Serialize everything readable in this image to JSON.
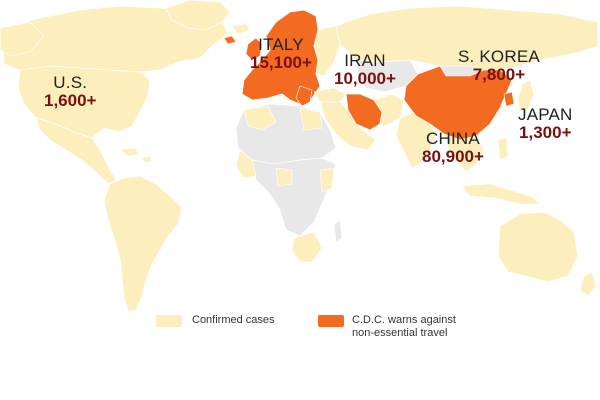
{
  "colors": {
    "confirmed": "#fcefbd",
    "travel_warning": "#f26b21",
    "no_cases": "#e8e8e8",
    "border": "#ffffff",
    "label_value": "#7a1010"
  },
  "labels": [
    {
      "name": "U.S.",
      "value": "1,600+"
    },
    {
      "name": "ITALY",
      "value": "15,100+"
    },
    {
      "name": "IRAN",
      "value": "10,000+"
    },
    {
      "name": "S. KOREA",
      "value": "7,800+"
    },
    {
      "name": "JAPAN",
      "value": "1,300+"
    },
    {
      "name": "CHINA",
      "value": "80,900+"
    }
  ],
  "legend": {
    "confirmed": "Confirmed cases",
    "travel_line1": "C.D.C. warns against",
    "travel_line2": "non-essential travel"
  }
}
